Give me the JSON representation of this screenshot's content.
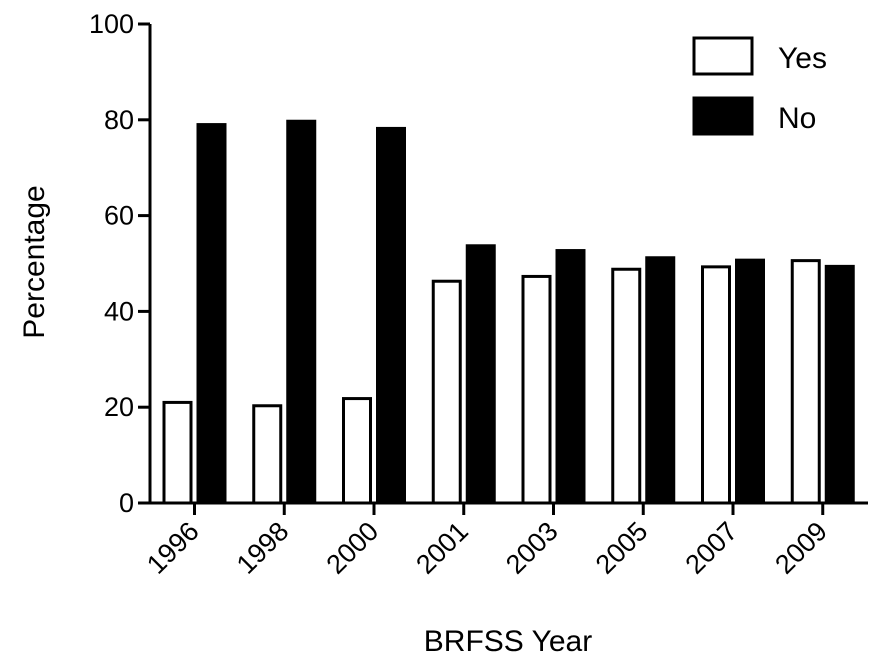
{
  "chart_data": {
    "type": "bar",
    "xlabel": "BRFSS Year",
    "ylabel": "Percentage",
    "ylim": [
      0,
      100
    ],
    "yticks": [
      0,
      20,
      40,
      60,
      80,
      100
    ],
    "categories": [
      "1996",
      "1998",
      "2000",
      "2001",
      "2003",
      "2005",
      "2007",
      "2009"
    ],
    "series": [
      {
        "name": "Yes",
        "color": "#ffffff",
        "stroke": "#000000",
        "values": [
          21,
          20.3,
          21.8,
          46.3,
          47.3,
          48.8,
          49.3,
          50.6
        ]
      },
      {
        "name": "No",
        "color": "#000000",
        "stroke": "#000000",
        "values": [
          79,
          79.7,
          78.2,
          53.7,
          52.7,
          51.2,
          50.7,
          49.4
        ]
      }
    ],
    "legend": "top-right",
    "grid": false
  }
}
